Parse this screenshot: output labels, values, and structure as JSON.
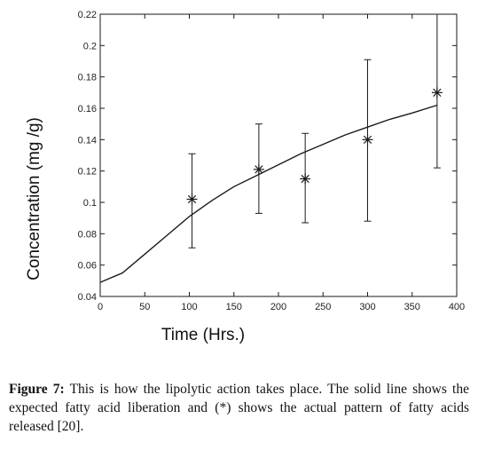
{
  "chart_data": {
    "type": "scatter",
    "xlabel": "Time (Hrs.)",
    "ylabel": "Concentration (mg /g)",
    "xlim": [
      0,
      400
    ],
    "ylim": [
      0.04,
      0.22
    ],
    "xticks": [
      0,
      50,
      100,
      150,
      200,
      250,
      300,
      350,
      400
    ],
    "xtick_labels": [
      "0",
      "50",
      "100",
      "150",
      "200",
      "250",
      "300",
      "350",
      "400"
    ],
    "yticks": [
      0.04,
      0.06,
      0.08,
      0.1,
      0.12,
      0.14,
      0.16,
      0.18,
      0.2,
      0.22
    ],
    "ytick_labels": [
      "0.04",
      "0.06",
      "0.08",
      "0.1",
      "0.12",
      "0.14",
      "0.16",
      "0.18",
      "0.2",
      "0.22"
    ],
    "grid": false,
    "legend": "none",
    "series": [
      {
        "kind": "points-with-error-bars",
        "marker": "*",
        "x": [
          103,
          178,
          230,
          300,
          378
        ],
        "y": [
          0.102,
          0.121,
          0.115,
          0.14,
          0.17
        ],
        "err_low": [
          0.071,
          0.093,
          0.087,
          0.088,
          0.122
        ],
        "err_high": [
          0.131,
          0.15,
          0.144,
          0.191,
          0.22
        ]
      },
      {
        "kind": "curve",
        "x": [
          0,
          25,
          50,
          75,
          100,
          125,
          150,
          175,
          200,
          225,
          250,
          275,
          300,
          325,
          350,
          378
        ],
        "y": [
          0.049,
          0.055,
          0.067,
          0.079,
          0.091,
          0.101,
          0.11,
          0.117,
          0.124,
          0.131,
          0.137,
          0.143,
          0.148,
          0.153,
          0.157,
          0.162
        ]
      }
    ]
  },
  "caption": {
    "label": "Figure 7:",
    "text": " This is how the lipolytic action takes place. The solid line shows the expected fatty acid liberation and (*) shows the actual pattern of fatty acids released [20]."
  },
  "colors": {
    "ink": "#1a1a1a",
    "background": "#ffffff"
  }
}
